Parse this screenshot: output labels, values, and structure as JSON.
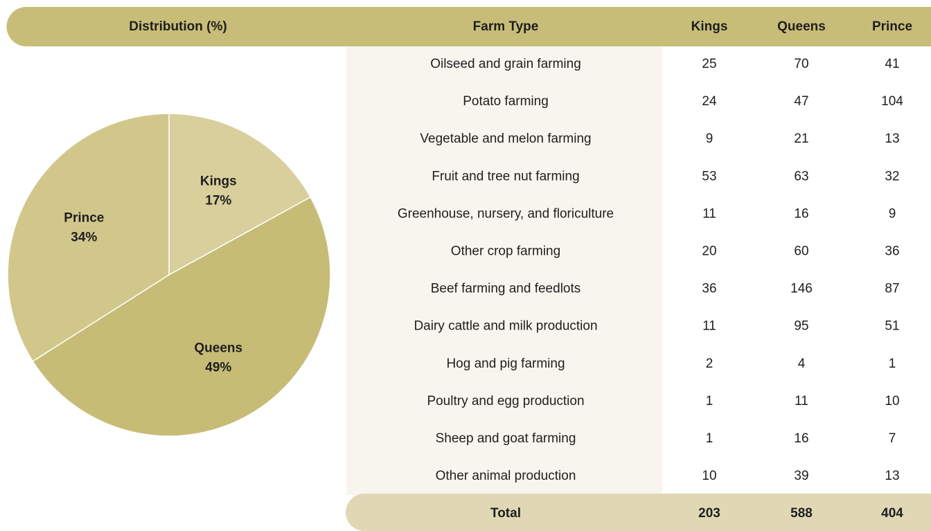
{
  "chart_data": {
    "type": "pie",
    "title": "Distribution (%)",
    "categories": [
      "Kings",
      "Queens",
      "Prince"
    ],
    "values": [
      17,
      49,
      34
    ],
    "value_labels": [
      "17%",
      "49%",
      "34%"
    ],
    "colors": [
      "#d9cf9c",
      "#c7bc76",
      "#d2c78b"
    ]
  },
  "table": {
    "header": [
      "Farm Type",
      "Kings",
      "Queens",
      "Prince"
    ],
    "rows": [
      [
        "Oilseed and grain farming",
        25,
        70,
        41
      ],
      [
        "Potato farming",
        24,
        47,
        104
      ],
      [
        "Vegetable and melon farming",
        9,
        21,
        13
      ],
      [
        "Fruit and tree nut farming",
        53,
        63,
        32
      ],
      [
        "Greenhouse, nursery, and floriculture",
        11,
        16,
        9
      ],
      [
        "Other crop farming",
        20,
        60,
        36
      ],
      [
        "Beef farming and feedlots",
        36,
        146,
        87
      ],
      [
        "Dairy cattle and milk production",
        11,
        95,
        51
      ],
      [
        "Hog and pig farming",
        2,
        4,
        1
      ],
      [
        "Poultry and egg production",
        1,
        11,
        10
      ],
      [
        "Sheep and goat farming",
        1,
        16,
        7
      ],
      [
        "Other animal production",
        10,
        39,
        13
      ]
    ],
    "total": [
      "Total",
      203,
      588,
      404
    ]
  }
}
